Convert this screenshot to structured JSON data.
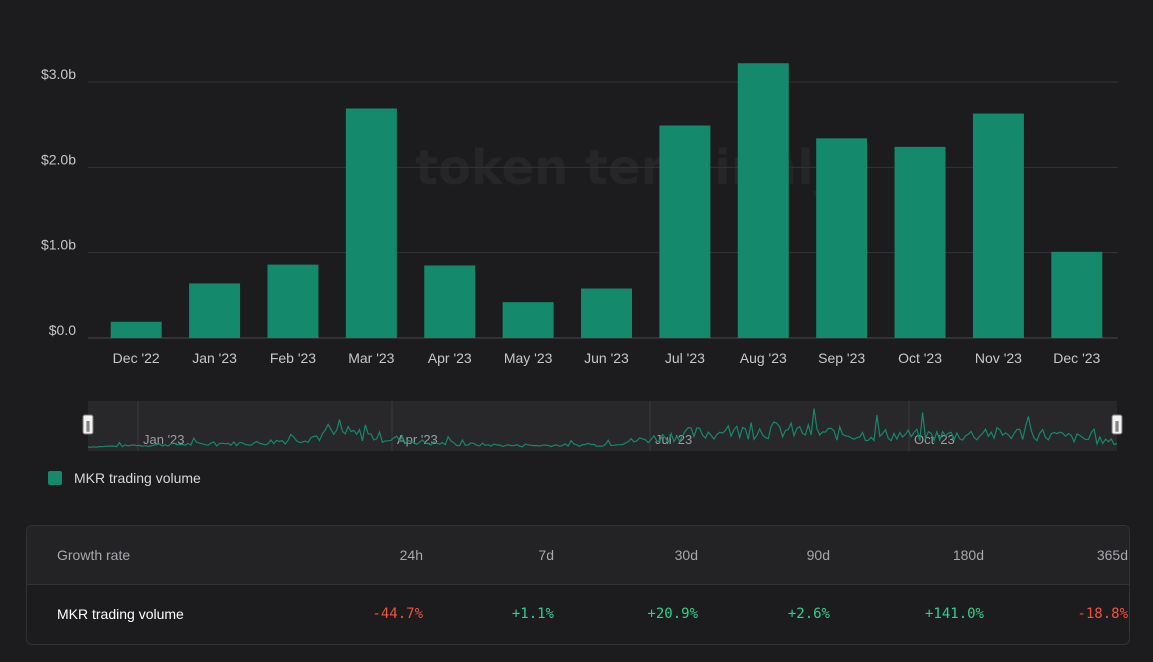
{
  "chart_data": {
    "type": "bar",
    "categories": [
      "Dec '22",
      "Jan '23",
      "Feb '23",
      "Mar '23",
      "Apr '23",
      "May '23",
      "Jun '23",
      "Jul '23",
      "Aug '23",
      "Sep '23",
      "Oct '23",
      "Nov '23",
      "Dec '23"
    ],
    "series": [
      {
        "name": "MKR trading volume",
        "values": [
          0.19,
          0.64,
          0.86,
          2.69,
          0.85,
          0.42,
          0.58,
          2.49,
          3.22,
          2.34,
          2.24,
          2.63,
          1.01
        ]
      }
    ],
    "y_tick_labels": [
      "$0.0",
      "$1.0b",
      "$2.0b",
      "$3.0b"
    ],
    "y_ticks": [
      0,
      1,
      2,
      3
    ],
    "ylim": [
      0,
      3.0
    ],
    "grid": true,
    "legend": "bottom-left",
    "bar_color": "#14896b",
    "watermark": "token terminal_",
    "navigator": {
      "labels": [
        "Jan '23",
        "Apr '23",
        "Jul '23",
        "Oct '23"
      ],
      "handle_glyph": "‖"
    }
  },
  "legend": {
    "label": "MKR trading volume",
    "color": "#14896b"
  },
  "growth_table": {
    "header_label": "Growth rate",
    "periods": [
      "24h",
      "7d",
      "30d",
      "90d",
      "180d",
      "365d"
    ],
    "row_label": "MKR trading volume",
    "values": [
      "-44.7%",
      "+1.1%",
      "+20.9%",
      "+2.6%",
      "+141.0%",
      "-18.8%"
    ],
    "positive_color": "#2fd08e",
    "negative_color": "#f4523b"
  }
}
